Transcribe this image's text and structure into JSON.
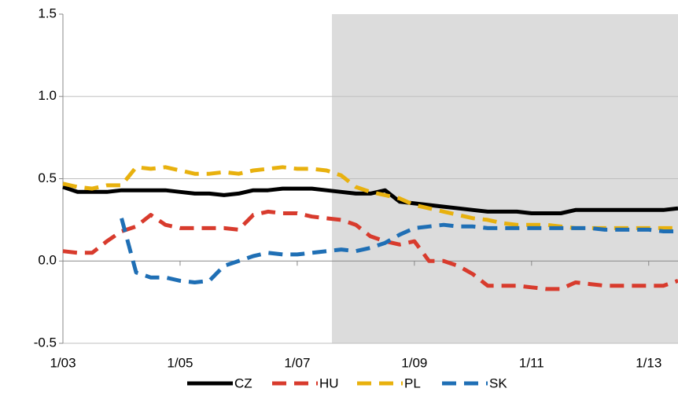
{
  "chart_data": {
    "type": "line",
    "categories": [
      "1/03",
      null,
      null,
      null,
      null,
      null,
      null,
      null,
      "1/05",
      null,
      null,
      null,
      null,
      null,
      null,
      null,
      "1/07",
      null,
      null,
      null,
      null,
      null,
      null,
      null,
      "1/09",
      null,
      null,
      null,
      null,
      null,
      null,
      null,
      "1/11",
      null,
      null,
      null,
      null,
      null,
      null,
      null,
      "1/13",
      null,
      null
    ],
    "series": [
      {
        "name": "CZ",
        "color": "#000000",
        "dashed": false,
        "values": [
          0.45,
          0.42,
          0.42,
          0.42,
          0.43,
          0.43,
          0.43,
          0.43,
          0.42,
          0.41,
          0.41,
          0.4,
          0.41,
          0.43,
          0.43,
          0.44,
          0.44,
          0.44,
          0.43,
          0.42,
          0.41,
          0.41,
          0.43,
          0.36,
          0.35,
          0.34,
          0.33,
          0.32,
          0.31,
          0.3,
          0.3,
          0.3,
          0.29,
          0.29,
          0.29,
          0.31,
          0.31,
          0.31,
          0.31,
          0.31,
          0.31,
          0.31,
          0.32
        ]
      },
      {
        "name": "HU",
        "color": "#d83b2d",
        "dashed": true,
        "values": [
          0.06,
          0.05,
          0.05,
          0.12,
          0.18,
          0.21,
          0.28,
          0.22,
          0.2,
          0.2,
          0.2,
          0.2,
          0.19,
          0.28,
          0.3,
          0.29,
          0.29,
          0.27,
          0.26,
          0.25,
          0.22,
          0.15,
          0.12,
          0.1,
          0.12,
          0.0,
          0.0,
          -0.03,
          -0.08,
          -0.15,
          -0.15,
          -0.15,
          -0.16,
          -0.17,
          -0.17,
          -0.13,
          -0.14,
          -0.15,
          -0.15,
          -0.15,
          -0.15,
          -0.15,
          -0.12
        ]
      },
      {
        "name": "PL",
        "color": "#e8b10e",
        "dashed": true,
        "values": [
          0.47,
          0.45,
          0.44,
          0.46,
          0.46,
          0.57,
          0.56,
          0.57,
          0.55,
          0.53,
          0.53,
          0.54,
          0.53,
          0.55,
          0.56,
          0.57,
          0.56,
          0.56,
          0.55,
          0.52,
          0.45,
          0.42,
          0.4,
          0.38,
          0.34,
          0.32,
          0.3,
          0.28,
          0.26,
          0.25,
          0.23,
          0.22,
          0.22,
          0.22,
          0.21,
          0.2,
          0.2,
          0.2,
          0.2,
          0.2,
          0.2,
          0.2,
          0.2
        ]
      },
      {
        "name": "SK",
        "color": "#1f6fb5",
        "dashed": true,
        "values": [
          null,
          null,
          null,
          null,
          0.26,
          -0.07,
          -0.1,
          -0.1,
          -0.12,
          -0.13,
          -0.12,
          -0.03,
          0.0,
          0.03,
          0.05,
          0.04,
          0.04,
          0.05,
          0.06,
          0.07,
          0.06,
          0.08,
          0.11,
          0.16,
          0.2,
          0.21,
          0.22,
          0.21,
          0.21,
          0.2,
          0.2,
          0.2,
          0.2,
          0.2,
          0.2,
          0.2,
          0.2,
          0.19,
          0.19,
          0.19,
          0.19,
          0.18,
          0.18
        ]
      }
    ],
    "ylim": [
      -0.5,
      1.5
    ],
    "yticks": [
      -0.5,
      {
        "value": 0,
        "label": "0.0"
      },
      0.5,
      {
        "value": 1,
        "label": "1.0"
      },
      1.5
    ],
    "grid": true,
    "legend": "bottom"
  }
}
